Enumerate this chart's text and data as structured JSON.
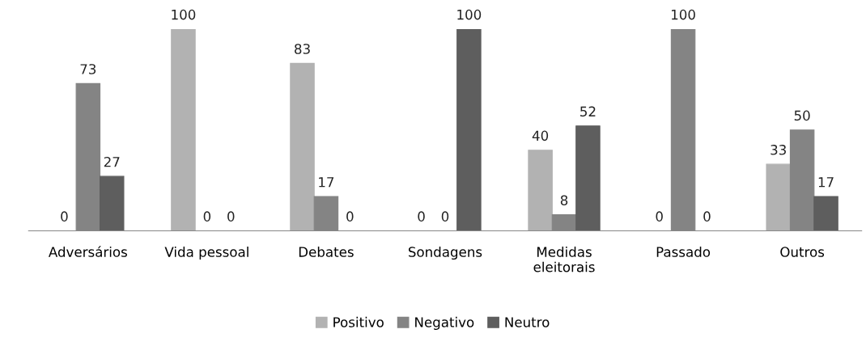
{
  "chart_data": {
    "type": "bar",
    "categories": [
      "Adversários",
      "Vida pessoal",
      "Debates",
      "Sondagens",
      "Medidas\neleitorais",
      "Passado",
      "Outros"
    ],
    "series": [
      {
        "name": "Positivo",
        "color": "#b2b2b2",
        "values": [
          0,
          100,
          83,
          0,
          40,
          0,
          33
        ]
      },
      {
        "name": "Negativo",
        "color": "#848484",
        "values": [
          73,
          0,
          17,
          0,
          8,
          100,
          50
        ]
      },
      {
        "name": "Neutro",
        "color": "#5e5e5e",
        "values": [
          27,
          0,
          0,
          100,
          52,
          0,
          17
        ]
      }
    ],
    "data_labels": true,
    "legend": "bottom",
    "grid": false,
    "tick_labels": "x"
  }
}
